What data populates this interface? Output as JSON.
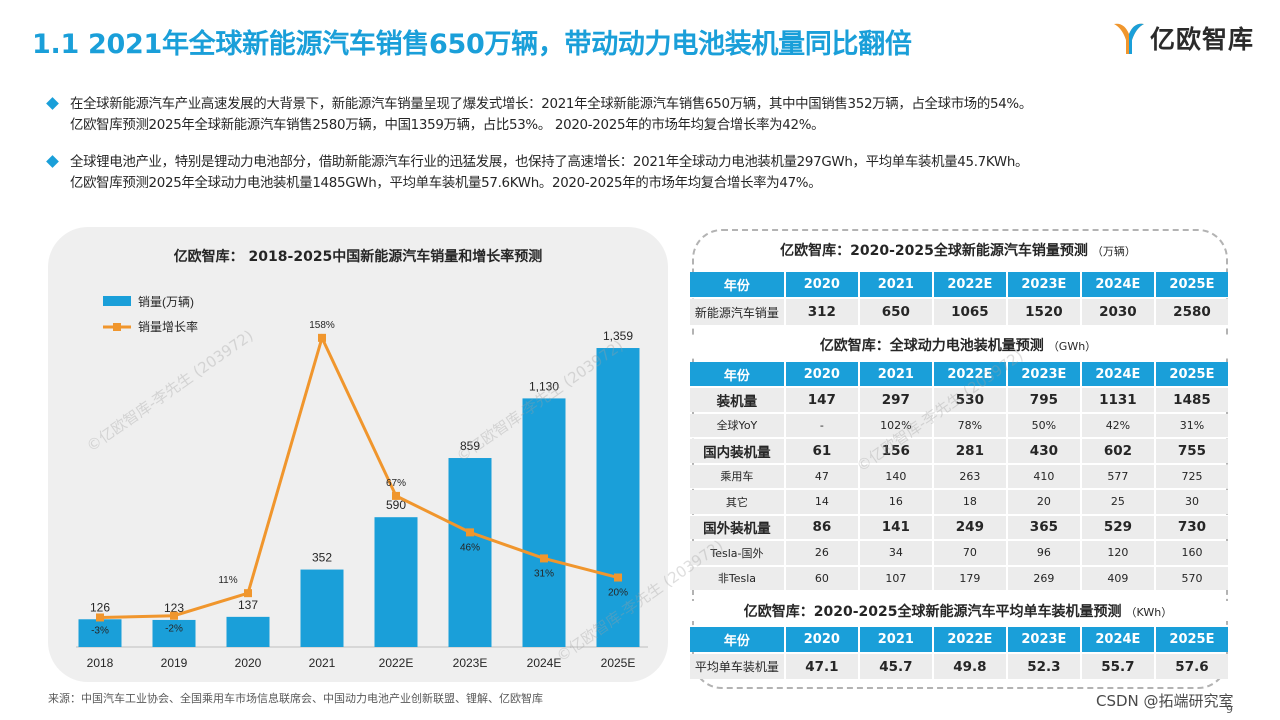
{
  "title": "1.1 2021年全球新能源汽车销售650万辆，带动动力电池装机量同比翻倍",
  "logo_text": "亿欧智库",
  "bullets": [
    {
      "line1": "在全球新能源汽车产业高速发展的大背景下，新能源汽车销量呈现了爆发式增长：2021年全球新能源汽车销售650万辆，其中中国销售352万辆，占全球市场的54%。",
      "line2": "亿欧智库预测2025年全球新能源汽车销售2580万辆，中国1359万辆，占比53%。 2020-2025年的市场年均复合增长率为42%。"
    },
    {
      "line1": "全球锂电池产业，特别是锂动力电池部分，借助新能源汽车行业的迅猛发展，也保持了高速增长：2021年全球动力电池装机量297GWh，平均单车装机量45.7KWh。",
      "line2": "亿欧智库预测2025年全球动力电池装机量1485GWh，平均单车装机量57.6KWh。2020-2025年的市场年均复合增长率为47%。"
    }
  ],
  "chart_data": {
    "type": "bar",
    "title": "亿欧智库： 2018-2025中国新能源汽车销量和增长率预测",
    "categories": [
      "2018",
      "2019",
      "2020",
      "2021",
      "2022E",
      "2023E",
      "2024E",
      "2025E"
    ],
    "series": [
      {
        "name": "销量(万辆)",
        "type": "bar",
        "values": [
          126,
          123,
          137,
          352,
          590,
          859,
          1130,
          1359
        ],
        "labels": [
          "126",
          "123",
          "137",
          "352",
          "590",
          "859",
          "1,130",
          "1,359"
        ]
      },
      {
        "name": "销量增长率",
        "type": "line",
        "values": [
          -3,
          -2,
          11,
          158,
          67,
          46,
          31,
          20
        ],
        "labels": [
          "-3%",
          "-2%",
          "11%",
          "158%",
          "67%",
          "46%",
          "31%",
          "20%"
        ]
      }
    ],
    "bar_max": 1500,
    "line_range": [
      -20,
      170
    ],
    "legend_position": "top-left",
    "colors": {
      "bar": "#1a9fd9",
      "line": "#f0962d"
    }
  },
  "table1": {
    "title": "亿欧智库：2020-2025全球新能源汽车销量预测",
    "unit": "（万辆）",
    "header": [
      "年份",
      "2020",
      "2021",
      "2022E",
      "2023E",
      "2024E",
      "2025E"
    ],
    "rows": [
      [
        "新能源汽车销量",
        "312",
        "650",
        "1065",
        "1520",
        "2030",
        "2580"
      ]
    ]
  },
  "table2": {
    "title": "亿欧智库：全球动力电池装机量预测",
    "unit": "（GWh）",
    "header": [
      "年份",
      "2020",
      "2021",
      "2022E",
      "2023E",
      "2024E",
      "2025E"
    ],
    "rows": [
      [
        "装机量",
        "147",
        "297",
        "530",
        "795",
        "1131",
        "1485"
      ],
      [
        "全球YoY",
        "-",
        "102%",
        "78%",
        "50%",
        "42%",
        "31%"
      ],
      [
        "国内装机量",
        "61",
        "156",
        "281",
        "430",
        "602",
        "755"
      ],
      [
        "乘用车",
        "47",
        "140",
        "263",
        "410",
        "577",
        "725"
      ],
      [
        "其它",
        "14",
        "16",
        "18",
        "20",
        "25",
        "30"
      ],
      [
        "国外装机量",
        "86",
        "141",
        "249",
        "365",
        "529",
        "730"
      ],
      [
        "Tesla-国外",
        "26",
        "34",
        "70",
        "96",
        "120",
        "160"
      ],
      [
        "非Tesla",
        "60",
        "107",
        "179",
        "269",
        "409",
        "570"
      ]
    ],
    "bold_rows": [
      0,
      2,
      5
    ]
  },
  "table3": {
    "title": "亿欧智库：2020-2025全球新能源汽车平均单车装机量预测",
    "unit": "（KWh）",
    "header": [
      "年份",
      "2020",
      "2021",
      "2022E",
      "2023E",
      "2024E",
      "2025E"
    ],
    "rows": [
      [
        "平均单车装机量",
        "47.1",
        "45.7",
        "49.8",
        "52.3",
        "55.7",
        "57.6"
      ]
    ]
  },
  "source": "来源：中国汽车工业协会、全国乘用车市场信息联席会、中国动力电池产业创新联盟、锂解、亿欧智库",
  "page_number": "9",
  "csdn_watermark": "CSDN @拓端研究室",
  "watermark_text": "©亿欧智库-李先生 (203972)"
}
